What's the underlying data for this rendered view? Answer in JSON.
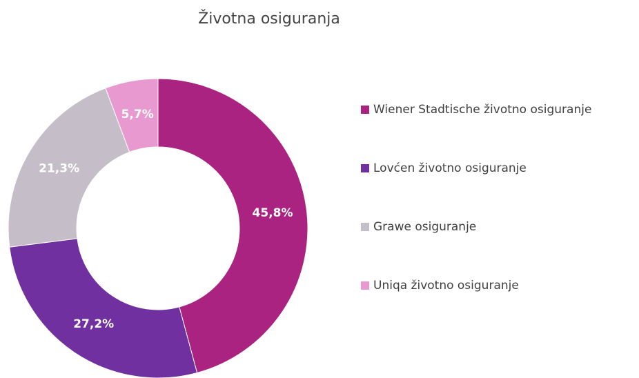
{
  "chart_data": {
    "type": "donut",
    "title": "Životna osiguranja",
    "categories": [
      "Wiener Stadtische životno osiguranje",
      "Lovćen životno osiguranje",
      "Grawe osiguranje",
      "Uniqa životno osiguranje"
    ],
    "values": [
      45.8,
      27.2,
      21.3,
      5.7
    ],
    "value_labels": [
      "45,8%",
      "27,2%",
      "21,3%",
      "5,7%"
    ],
    "colors": [
      "#ab2380",
      "#7030a0",
      "#c5bec8",
      "#e89ad0"
    ],
    "legend": "right"
  }
}
